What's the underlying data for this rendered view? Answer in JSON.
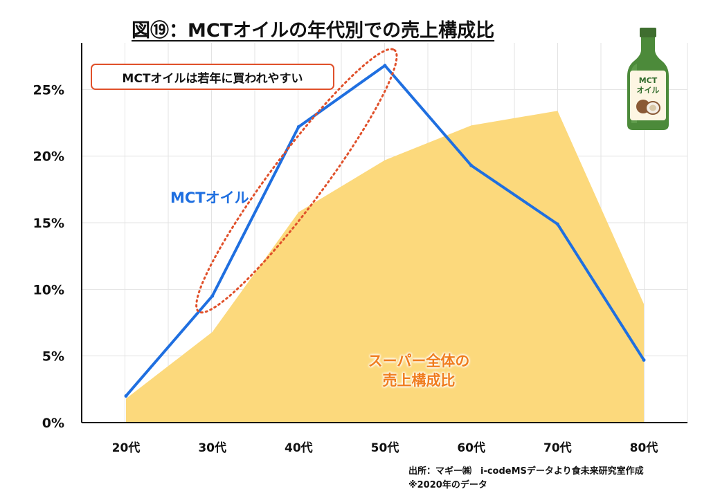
{
  "title": "図⑲：MCTオイルの年代別での売上構成比",
  "annotation": "MCTオイルは若年に買われやすい",
  "bottle_label": [
    "MCT",
    "オイル"
  ],
  "source": {
    "line1": "出所：マギー㈱　i-codeMSデータより食未来研究室作成",
    "line2": "※2020年のデータ"
  },
  "colors": {
    "mct_line": "#1f6fe0",
    "area_fill": "#fcd97c",
    "highlight": "#e0502a",
    "area_label": "#f07d1e"
  },
  "chart_data": {
    "type": "line",
    "title": "図⑲：MCTオイルの年代別での売上構成比",
    "categories": [
      "20代",
      "30代",
      "40代",
      "50代",
      "60代",
      "70代",
      "80代"
    ],
    "series": [
      {
        "name": "MCTオイル",
        "chart": "line",
        "values": [
          2.0,
          9.5,
          22.2,
          26.8,
          19.3,
          14.9,
          4.7
        ]
      },
      {
        "name": "スーパー全体の売上構成比",
        "label_lines": [
          "スーパー全体の",
          "売上構成比"
        ],
        "chart": "area",
        "values": [
          1.8,
          6.8,
          15.8,
          19.7,
          22.3,
          23.4,
          8.9
        ]
      }
    ],
    "yticks": [
      "0%",
      "5%",
      "10%",
      "15%",
      "20%",
      "25%"
    ],
    "ytick_values": [
      0,
      5,
      10,
      15,
      20,
      25
    ],
    "ylim": [
      0,
      28.5
    ],
    "grid": true,
    "xlabel": "",
    "ylabel": ""
  }
}
